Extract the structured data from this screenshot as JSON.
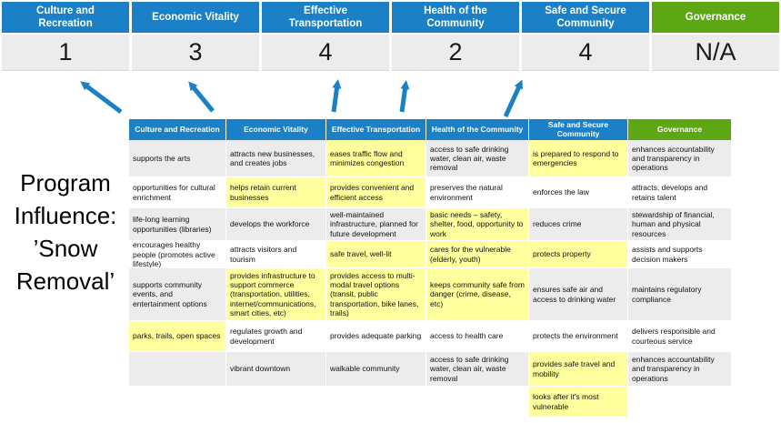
{
  "title": {
    "text": "Program Influence: ’Snow Removal’"
  },
  "colors": {
    "blue": "#1b80c5",
    "green": "#5ca713",
    "score_bg": "#ececec",
    "band_gray": "#ececec",
    "row_white": "#ffffff",
    "highlight": "#ffff9d",
    "arrow": "#1b80c5"
  },
  "priorities": [
    {
      "label": "Culture and Recreation",
      "score": "1",
      "color": "blue"
    },
    {
      "label": "Economic Vitality",
      "score": "3",
      "color": "blue"
    },
    {
      "label": "Effective Transportation",
      "score": "4",
      "color": "blue"
    },
    {
      "label": "Health of the Community",
      "score": "2",
      "color": "blue"
    },
    {
      "label": "Safe and Secure Community",
      "score": "4",
      "color": "blue"
    },
    {
      "label": "Governance",
      "score": "N/A",
      "color": "green"
    }
  ],
  "matrix": {
    "columns": [
      {
        "label": "Culture and Recreation",
        "color": "blue"
      },
      {
        "label": "Economic Vitality",
        "color": "blue"
      },
      {
        "label": "Effective Transportation",
        "color": "blue"
      },
      {
        "label": "Health of the Community",
        "color": "blue"
      },
      {
        "label": "Safe and Secure Community",
        "color": "blue"
      },
      {
        "label": "Governance",
        "color": "green"
      }
    ],
    "rows": [
      [
        {
          "text": "supports the arts",
          "highlight": false
        },
        {
          "text": "attracts new businesses, and creates jobs",
          "highlight": false
        },
        {
          "text": "eases traffic flow and minimizes congestion",
          "highlight": true
        },
        {
          "text": "access to safe drinking water, clean air, waste removal",
          "highlight": false
        },
        {
          "text": "is prepared to respond to emergencies",
          "highlight": true
        },
        {
          "text": "enhances accountability and transparency in operations",
          "highlight": false
        }
      ],
      [
        {
          "text": "opportunities for cultural enrichment",
          "highlight": false
        },
        {
          "text": "helps retain current businesses",
          "highlight": true
        },
        {
          "text": "provides convenient and efficient access",
          "highlight": true
        },
        {
          "text": "preserves the natural environment",
          "highlight": false
        },
        {
          "text": "enforces the law",
          "highlight": false
        },
        {
          "text": "attracts, develops and retains talent",
          "highlight": false
        }
      ],
      [
        {
          "text": "life-long learning opportunities (libraries)",
          "highlight": false
        },
        {
          "text": "develops the workforce",
          "highlight": false
        },
        {
          "text": "well-maintained infrastructure, planned for future development",
          "highlight": false
        },
        {
          "text": "basic needs – safety, shelter, food, opportunity to work",
          "highlight": true
        },
        {
          "text": "reduces crime",
          "highlight": false
        },
        {
          "text": "stewardship of financial, human and physical resources",
          "highlight": false
        }
      ],
      [
        {
          "text": "encourages healthy people (promotes active lifestyle)",
          "highlight": false
        },
        {
          "text": "attracts visitors and tourism",
          "highlight": false
        },
        {
          "text": "safe travel, well-lit",
          "highlight": true
        },
        {
          "text": "cares for the vulnerable (elderly, youth)",
          "highlight": true
        },
        {
          "text": "protects property",
          "highlight": true
        },
        {
          "text": "assists and supports decision makers",
          "highlight": false
        }
      ],
      [
        {
          "text": "supports community events, and entertainment options",
          "highlight": false
        },
        {
          "text": "provides infrastructure to support commerce (transportation, utilities, internet/communications, smart cities, etc)",
          "highlight": true
        },
        {
          "text": "provides access to multi-modal travel options (transit, public transportation, bike lanes, trails)",
          "highlight": true
        },
        {
          "text": "keeps community safe from danger (crime, disease, etc)",
          "highlight": true
        },
        {
          "text": "ensures safe air and access to drinking water",
          "highlight": false
        },
        {
          "text": "maintains regulatory compliance",
          "highlight": false
        }
      ],
      [
        {
          "text": "parks, trails, open spaces",
          "highlight": true
        },
        {
          "text": "regulates growth and development",
          "highlight": false
        },
        {
          "text": "provides adequate parking",
          "highlight": false
        },
        {
          "text": "access to health care",
          "highlight": false
        },
        {
          "text": "protects the environment",
          "highlight": false
        },
        {
          "text": "delivers responsible and courteous service",
          "highlight": false
        }
      ],
      [
        {
          "text": "",
          "highlight": false
        },
        {
          "text": "vibrant downtown",
          "highlight": false
        },
        {
          "text": "walkable community",
          "highlight": false
        },
        {
          "text": "access to safe drinking water, clean air, waste removal",
          "highlight": false
        },
        {
          "text": "provides safe travel and mobility",
          "highlight": true
        },
        {
          "text": "enhances accountability and transparency in operations",
          "highlight": false
        }
      ],
      [
        {
          "text": "",
          "highlight": false
        },
        {
          "text": "",
          "highlight": false
        },
        {
          "text": "",
          "highlight": false
        },
        {
          "text": "",
          "highlight": false
        },
        {
          "text": "looks after it's most vulnerable",
          "highlight": true
        },
        {
          "text": "",
          "highlight": false
        }
      ]
    ]
  }
}
